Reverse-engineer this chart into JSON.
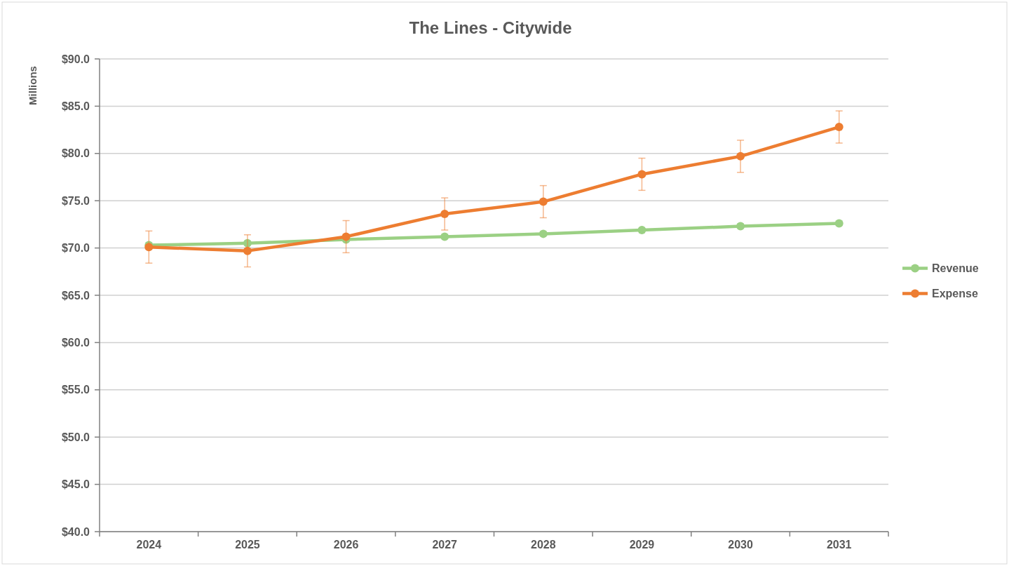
{
  "chart_data": {
    "type": "line",
    "title": "The Lines - Citywide",
    "ylabel": "Millions",
    "categories": [
      "2024",
      "2025",
      "2026",
      "2027",
      "2028",
      "2029",
      "2030",
      "2031"
    ],
    "series": [
      {
        "name": "Revenue",
        "color": "#9bd084",
        "values": [
          70.3,
          70.5,
          70.9,
          71.2,
          71.5,
          71.9,
          72.3,
          72.6
        ]
      },
      {
        "name": "Expense",
        "color": "#ed7d31",
        "values": [
          70.1,
          69.7,
          71.2,
          73.6,
          74.9,
          77.8,
          79.7,
          82.8
        ],
        "errors": [
          1.7,
          1.7,
          1.7,
          1.7,
          1.7,
          1.7,
          1.7,
          1.7
        ]
      }
    ],
    "ylim": [
      40,
      90
    ],
    "yticks": [
      {
        "value": 40,
        "label": "$40.0"
      },
      {
        "value": 45,
        "label": "$45.0"
      },
      {
        "value": 50,
        "label": "$50.0"
      },
      {
        "value": 55,
        "label": "$55.0"
      },
      {
        "value": 60,
        "label": "$60.0"
      },
      {
        "value": 65,
        "label": "$65.0"
      },
      {
        "value": 70,
        "label": "$70.0"
      },
      {
        "value": 75,
        "label": "$75.0"
      },
      {
        "value": 80,
        "label": "$80.0"
      },
      {
        "value": 85,
        "label": "$85.0"
      },
      {
        "value": 90,
        "label": "$90.0"
      }
    ],
    "grid": "y",
    "legend": "right",
    "marker": "circle",
    "line_style": "solid"
  }
}
